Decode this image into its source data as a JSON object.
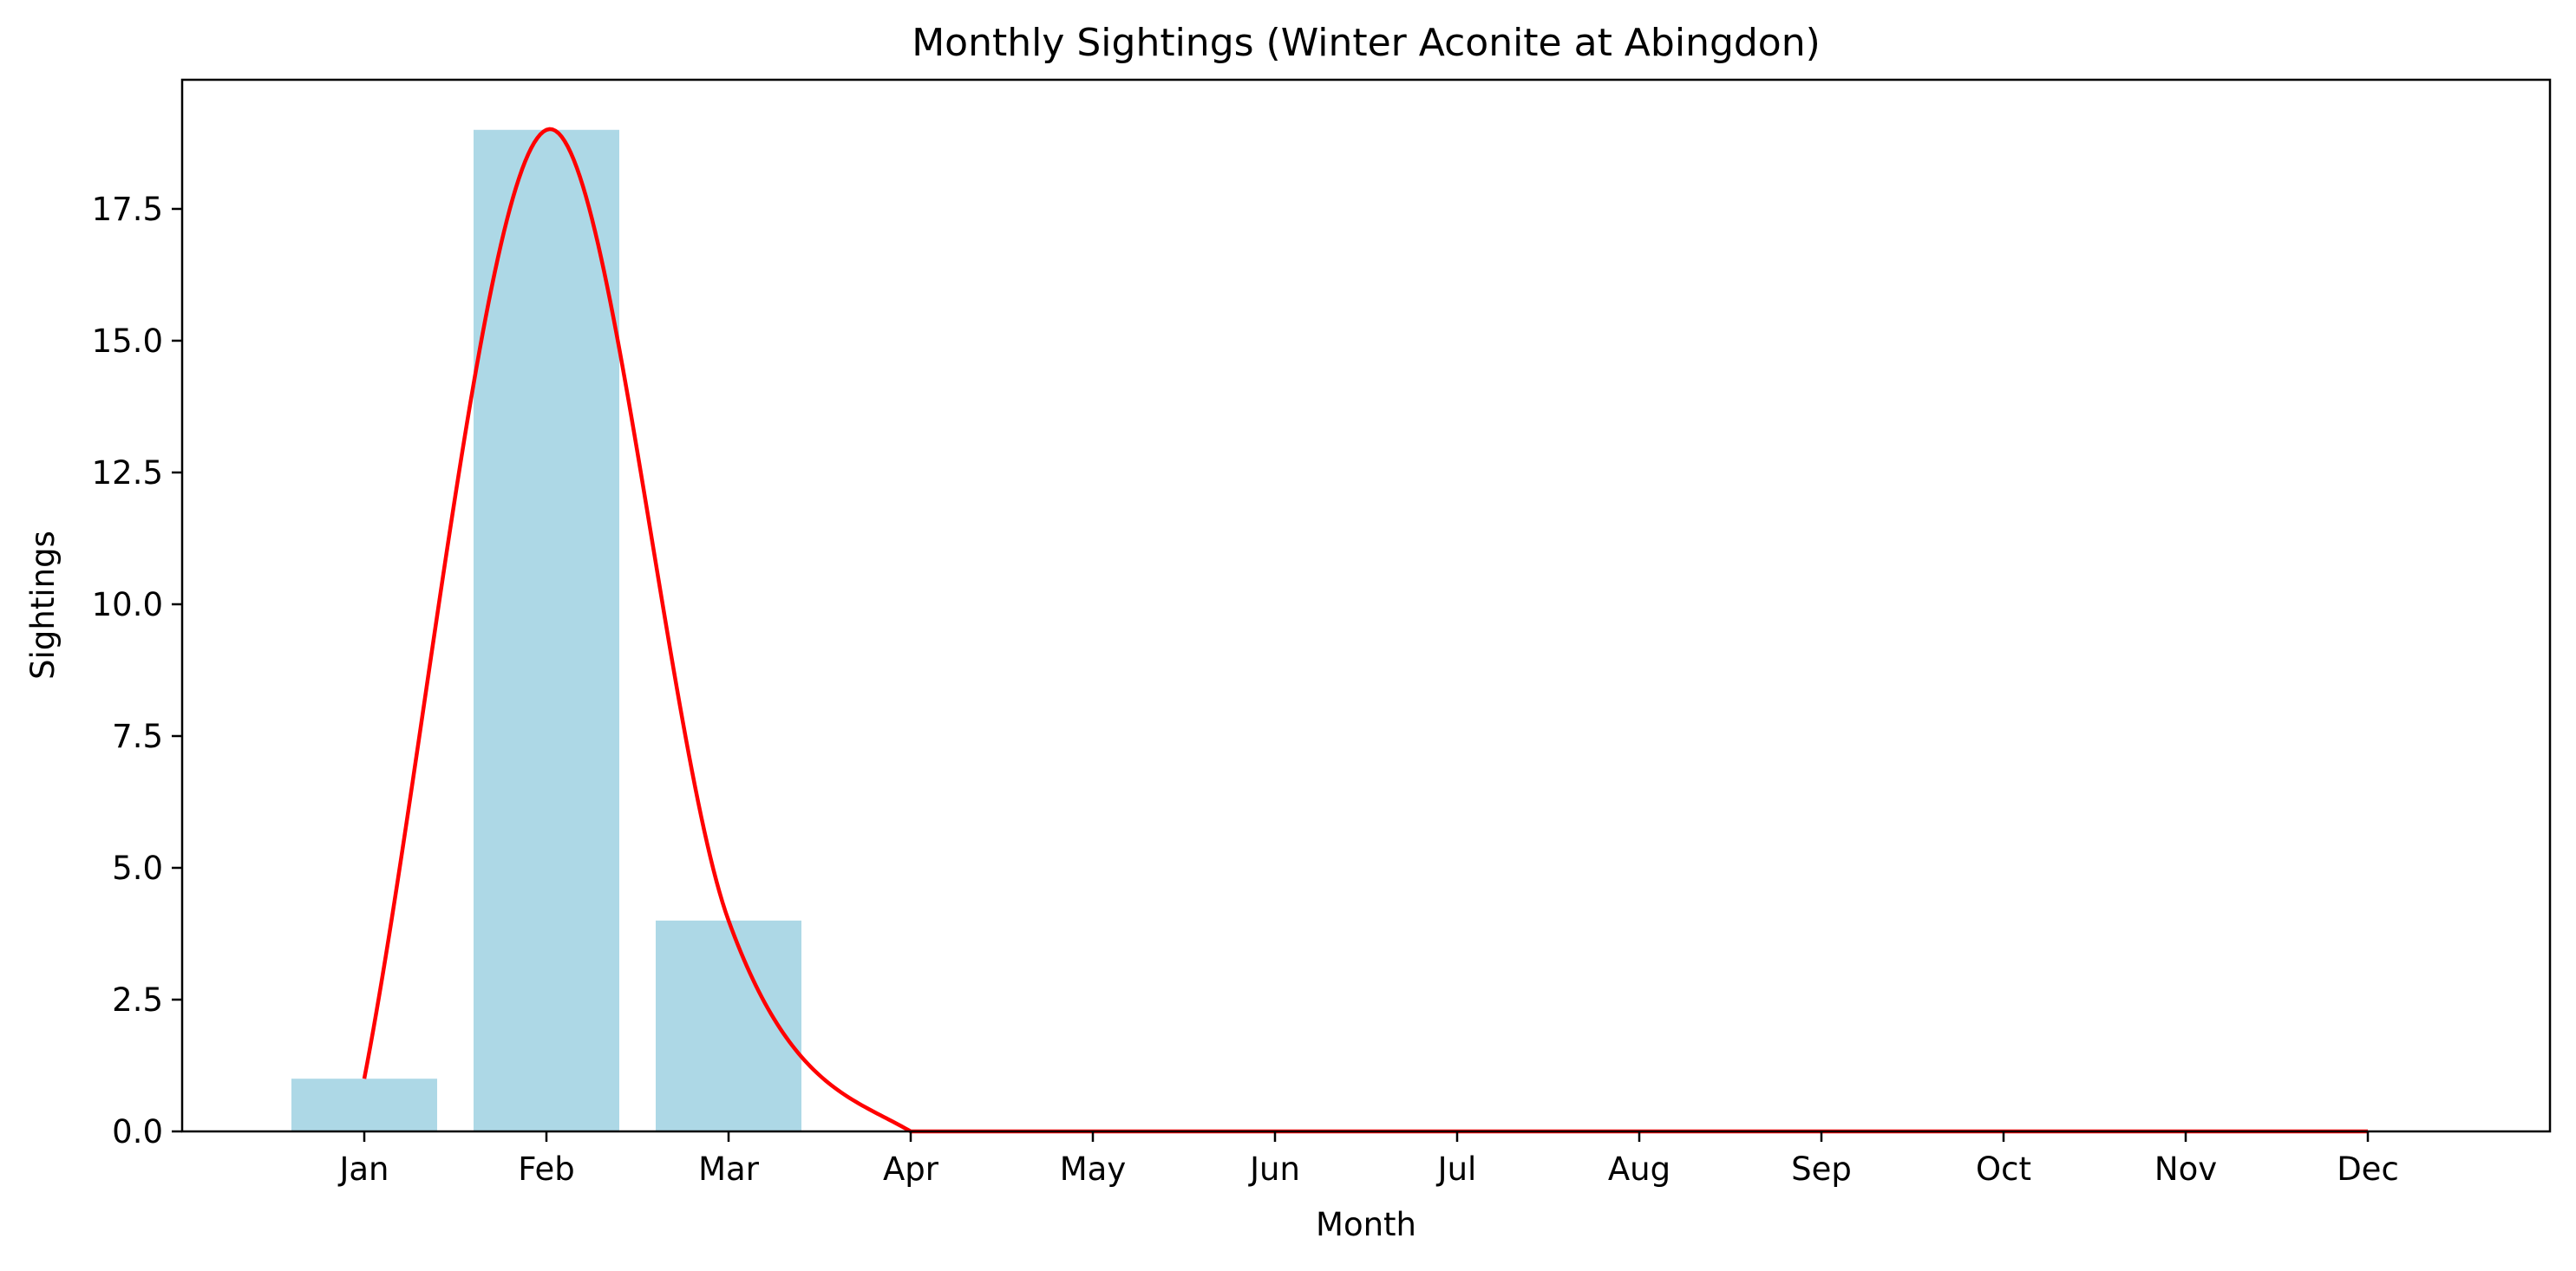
{
  "chart_data": {
    "type": "bar",
    "title": "Monthly Sightings (Winter Aconite at Abingdon)",
    "xlabel": "Month",
    "ylabel": "Sightings",
    "categories": [
      "Jan",
      "Feb",
      "Mar",
      "Apr",
      "May",
      "Jun",
      "Jul",
      "Aug",
      "Sep",
      "Oct",
      "Nov",
      "Dec"
    ],
    "values": [
      1,
      19,
      4,
      0,
      0,
      0,
      0,
      0,
      0,
      0,
      0,
      0
    ],
    "yticks": [
      "0.0",
      "2.5",
      "5.0",
      "7.5",
      "10.0",
      "12.5",
      "15.0",
      "17.5"
    ],
    "ylim": [
      0,
      19.95
    ],
    "grid": false,
    "bar_color": "#add8e6",
    "curve": {
      "type": "smoothed line",
      "color": "#ff0000",
      "clip_min": 0
    }
  }
}
